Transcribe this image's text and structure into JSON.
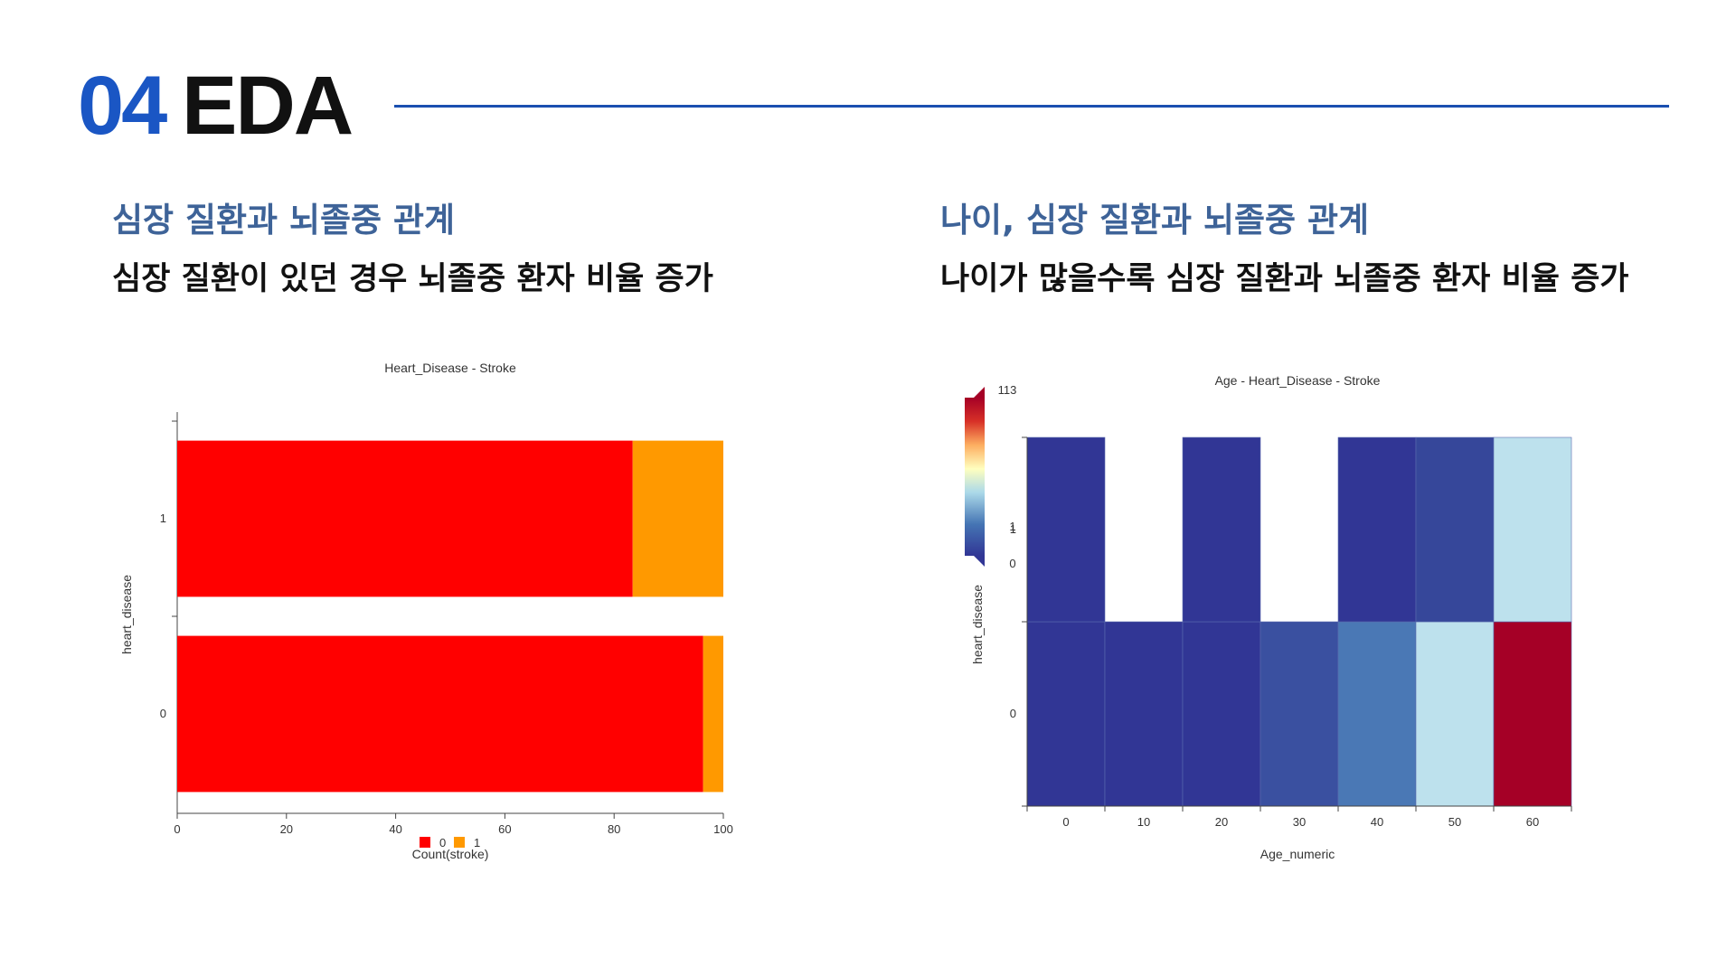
{
  "header": {
    "number": "04",
    "title": "EDA"
  },
  "left": {
    "title": "심장 질환과 뇌졸중 관계",
    "subtitle": "심장 질환이 있던 경우 뇌졸중 환자 비율 증가"
  },
  "right": {
    "title": "나이, 심장 질환과 뇌졸중 관계",
    "subtitle": "나이가 많을수록 심장 질환과 뇌졸중 환자 비율 증가"
  },
  "chart_data": [
    {
      "type": "bar",
      "orientation": "horizontal",
      "stacked": true,
      "title": "Heart_Disease - Stroke",
      "xlabel": "Count(stroke)",
      "ylabel": "heart_disease",
      "categories": [
        "0",
        "1"
      ],
      "series": [
        {
          "name": "0",
          "values": [
            96.3,
            83.4
          ],
          "color": "#ff0000"
        },
        {
          "name": "1",
          "values": [
            3.7,
            16.6
          ],
          "color": "#ff9900"
        }
      ],
      "xlim": [
        0,
        100
      ],
      "xticks": [
        "0",
        "20",
        "40",
        "60",
        "80",
        "100"
      ],
      "legend": "bottom",
      "grid": false
    },
    {
      "type": "heatmap",
      "title": "Age - Heart_Disease - Stroke",
      "xlabel": "Age_numeric",
      "ylabel": "heart_disease",
      "x": [
        "0",
        "10",
        "20",
        "30",
        "40",
        "50",
        "60"
      ],
      "y": [
        "0",
        "1"
      ],
      "values": [
        [
          0,
          0,
          0,
          1,
          3,
          40,
          113
        ],
        [
          0,
          null,
          0,
          null,
          0,
          1,
          40
        ]
      ],
      "color_scale": {
        "min_label": "0",
        "mid_label": "1",
        "max_label": "113",
        "colors": [
          "#313695",
          "#4575b4",
          "#abd9e9",
          "#ffffbf",
          "#fdae61",
          "#d73027",
          "#a50026"
        ]
      },
      "cell_colors": [
        [
          "#313695",
          "#313695",
          "#313695",
          "#3a50a0",
          "#4a78b5",
          "#bde1ed",
          "#a50026"
        ],
        [
          "#313695",
          null,
          "#313695",
          null,
          "#313695",
          "#36479a",
          "#bde1ed"
        ]
      ],
      "legend": "top-left",
      "grid": false
    }
  ]
}
